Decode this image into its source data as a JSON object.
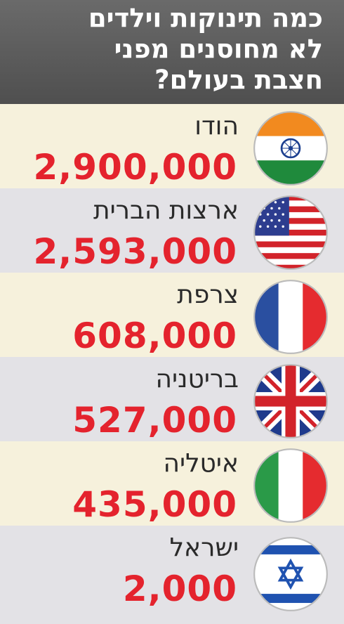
{
  "title": {
    "line1": "כמה תינוקות וילדים",
    "line2": "לא מחוסנים מפני",
    "line3": "חצבת בעולם?"
  },
  "chart_data": {
    "type": "table",
    "title": "כמה תינוקות וילדים לא מחוסנים מפני חצבת בעולם?",
    "rows": [
      {
        "country": "הודו",
        "value_label": "2,900,000",
        "value": 2900000,
        "flag": "india-flag"
      },
      {
        "country": "ארצות הברית",
        "value_label": "2,593,000",
        "value": 2593000,
        "flag": "usa-flag"
      },
      {
        "country": "צרפת",
        "value_label": "608,000",
        "value": 608000,
        "flag": "france-flag"
      },
      {
        "country": "בריטניה",
        "value_label": "527,000",
        "value": 527000,
        "flag": "uk-flag"
      },
      {
        "country": "איטליה",
        "value_label": "435,000",
        "value": 435000,
        "flag": "italy-flag"
      },
      {
        "country": "ישראל",
        "value_label": "2,000",
        "value": 2000,
        "flag": "israel-flag"
      }
    ]
  },
  "colors": {
    "header_bg": "#555555",
    "value_red": "#e4232d",
    "row_light": "#f6f1dc",
    "row_gray": "#e3e2e6"
  }
}
